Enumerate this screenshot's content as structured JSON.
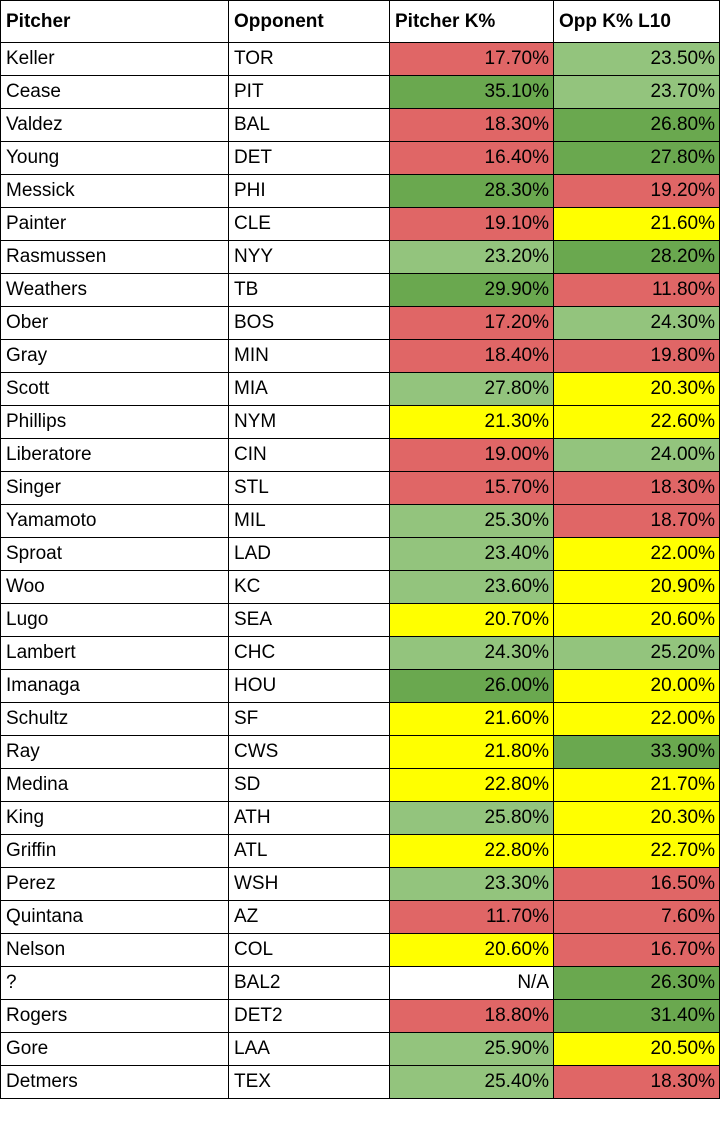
{
  "colors": {
    "red": "#e06666",
    "light_green": "#93c47d",
    "dark_green": "#6aa84f",
    "yellow": "#ffff00",
    "white": "#ffffff"
  },
  "headers": [
    "Pitcher",
    "Opponent",
    "Pitcher K%",
    "Opp K% L10"
  ],
  "rows": [
    {
      "pitcher": "Keller",
      "opponent": "TOR",
      "pitcher_k": "17.70%",
      "pitcher_k_color": "red",
      "opp_k": "23.50%",
      "opp_k_color": "light_green"
    },
    {
      "pitcher": "Cease",
      "opponent": "PIT",
      "pitcher_k": "35.10%",
      "pitcher_k_color": "dark_green",
      "opp_k": "23.70%",
      "opp_k_color": "light_green"
    },
    {
      "pitcher": "Valdez",
      "opponent": "BAL",
      "pitcher_k": "18.30%",
      "pitcher_k_color": "red",
      "opp_k": "26.80%",
      "opp_k_color": "dark_green"
    },
    {
      "pitcher": "Young",
      "opponent": "DET",
      "pitcher_k": "16.40%",
      "pitcher_k_color": "red",
      "opp_k": "27.80%",
      "opp_k_color": "dark_green"
    },
    {
      "pitcher": "Messick",
      "opponent": "PHI",
      "pitcher_k": "28.30%",
      "pitcher_k_color": "dark_green",
      "opp_k": "19.20%",
      "opp_k_color": "red"
    },
    {
      "pitcher": "Painter",
      "opponent": "CLE",
      "pitcher_k": "19.10%",
      "pitcher_k_color": "red",
      "opp_k": "21.60%",
      "opp_k_color": "yellow"
    },
    {
      "pitcher": "Rasmussen",
      "opponent": "NYY",
      "pitcher_k": "23.20%",
      "pitcher_k_color": "light_green",
      "opp_k": "28.20%",
      "opp_k_color": "dark_green"
    },
    {
      "pitcher": "Weathers",
      "opponent": "TB",
      "pitcher_k": "29.90%",
      "pitcher_k_color": "dark_green",
      "opp_k": "11.80%",
      "opp_k_color": "red"
    },
    {
      "pitcher": "Ober",
      "opponent": "BOS",
      "pitcher_k": "17.20%",
      "pitcher_k_color": "red",
      "opp_k": "24.30%",
      "opp_k_color": "light_green"
    },
    {
      "pitcher": "Gray",
      "opponent": "MIN",
      "pitcher_k": "18.40%",
      "pitcher_k_color": "red",
      "opp_k": "19.80%",
      "opp_k_color": "red"
    },
    {
      "pitcher": "Scott",
      "opponent": "MIA",
      "pitcher_k": "27.80%",
      "pitcher_k_color": "light_green",
      "opp_k": "20.30%",
      "opp_k_color": "yellow"
    },
    {
      "pitcher": "Phillips",
      "opponent": "NYM",
      "pitcher_k": "21.30%",
      "pitcher_k_color": "yellow",
      "opp_k": "22.60%",
      "opp_k_color": "yellow"
    },
    {
      "pitcher": "Liberatore",
      "opponent": "CIN",
      "pitcher_k": "19.00%",
      "pitcher_k_color": "red",
      "opp_k": "24.00%",
      "opp_k_color": "light_green"
    },
    {
      "pitcher": "Singer",
      "opponent": "STL",
      "pitcher_k": "15.70%",
      "pitcher_k_color": "red",
      "opp_k": "18.30%",
      "opp_k_color": "red"
    },
    {
      "pitcher": "Yamamoto",
      "opponent": "MIL",
      "pitcher_k": "25.30%",
      "pitcher_k_color": "light_green",
      "opp_k": "18.70%",
      "opp_k_color": "red"
    },
    {
      "pitcher": "Sproat",
      "opponent": "LAD",
      "pitcher_k": "23.40%",
      "pitcher_k_color": "light_green",
      "opp_k": "22.00%",
      "opp_k_color": "yellow"
    },
    {
      "pitcher": "Woo",
      "opponent": "KC",
      "pitcher_k": "23.60%",
      "pitcher_k_color": "light_green",
      "opp_k": "20.90%",
      "opp_k_color": "yellow"
    },
    {
      "pitcher": "Lugo",
      "opponent": "SEA",
      "pitcher_k": "20.70%",
      "pitcher_k_color": "yellow",
      "opp_k": "20.60%",
      "opp_k_color": "yellow"
    },
    {
      "pitcher": "Lambert",
      "opponent": "CHC",
      "pitcher_k": "24.30%",
      "pitcher_k_color": "light_green",
      "opp_k": "25.20%",
      "opp_k_color": "light_green"
    },
    {
      "pitcher": "Imanaga",
      "opponent": "HOU",
      "pitcher_k": "26.00%",
      "pitcher_k_color": "dark_green",
      "opp_k": "20.00%",
      "opp_k_color": "yellow"
    },
    {
      "pitcher": "Schultz",
      "opponent": "SF",
      "pitcher_k": "21.60%",
      "pitcher_k_color": "yellow",
      "opp_k": "22.00%",
      "opp_k_color": "yellow"
    },
    {
      "pitcher": "Ray",
      "opponent": "CWS",
      "pitcher_k": "21.80%",
      "pitcher_k_color": "yellow",
      "opp_k": "33.90%",
      "opp_k_color": "dark_green"
    },
    {
      "pitcher": "Medina",
      "opponent": "SD",
      "pitcher_k": "22.80%",
      "pitcher_k_color": "yellow",
      "opp_k": "21.70%",
      "opp_k_color": "yellow"
    },
    {
      "pitcher": "King",
      "opponent": "ATH",
      "pitcher_k": "25.80%",
      "pitcher_k_color": "light_green",
      "opp_k": "20.30%",
      "opp_k_color": "yellow"
    },
    {
      "pitcher": "Griffin",
      "opponent": "ATL",
      "pitcher_k": "22.80%",
      "pitcher_k_color": "yellow",
      "opp_k": "22.70%",
      "opp_k_color": "yellow"
    },
    {
      "pitcher": "Perez",
      "opponent": "WSH",
      "pitcher_k": "23.30%",
      "pitcher_k_color": "light_green",
      "opp_k": "16.50%",
      "opp_k_color": "red"
    },
    {
      "pitcher": "Quintana",
      "opponent": "AZ",
      "pitcher_k": "11.70%",
      "pitcher_k_color": "red",
      "opp_k": "7.60%",
      "opp_k_color": "red"
    },
    {
      "pitcher": "Nelson",
      "opponent": "COL",
      "pitcher_k": "20.60%",
      "pitcher_k_color": "yellow",
      "opp_k": "16.70%",
      "opp_k_color": "red"
    },
    {
      "pitcher": "?",
      "opponent": "BAL2",
      "pitcher_k": "N/A",
      "pitcher_k_color": "white",
      "opp_k": "26.30%",
      "opp_k_color": "dark_green"
    },
    {
      "pitcher": "Rogers",
      "opponent": "DET2",
      "pitcher_k": "18.80%",
      "pitcher_k_color": "red",
      "opp_k": "31.40%",
      "opp_k_color": "dark_green"
    },
    {
      "pitcher": "Gore",
      "opponent": "LAA",
      "pitcher_k": "25.90%",
      "pitcher_k_color": "light_green",
      "opp_k": "20.50%",
      "opp_k_color": "yellow"
    },
    {
      "pitcher": "Detmers",
      "opponent": "TEX",
      "pitcher_k": "25.40%",
      "pitcher_k_color": "light_green",
      "opp_k": "18.30%",
      "opp_k_color": "red"
    }
  ]
}
